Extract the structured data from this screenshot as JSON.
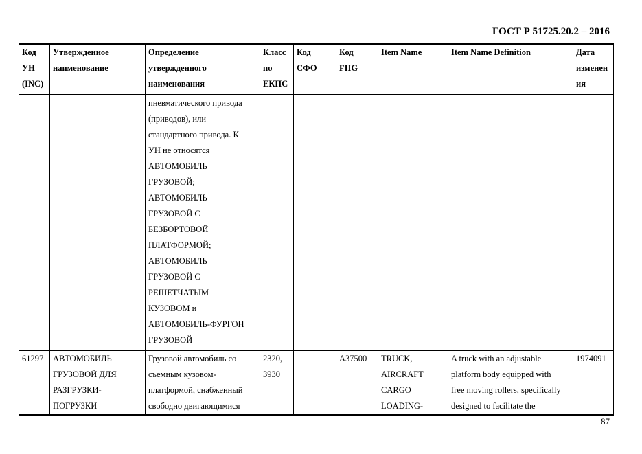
{
  "header": {
    "doc_number": "ГОСТ Р 51725.20.2 – 2016"
  },
  "table": {
    "columns": [
      "Код\nУН\n(INC)",
      "Утвержденное\nнаименование",
      "Определение\nутвержденного\nнаименования",
      "Класс\nпо\nЕКПС",
      "Код\nСФО",
      "Код\nFIIG",
      "Item Name",
      "Item Name Definition",
      "Дата\nизменен\nия"
    ],
    "rows": [
      [
        "",
        "",
        "пневматического привода\n(приводов), или\nстандартного привода. К\nУН не относятся\nАВТОМОБИЛЬ\nГРУЗОВОЙ;\nАВТОМОБИЛЬ\nГРУЗОВОЙ С\nБЕЗБОРТОВОЙ\nПЛАТФОРМОЙ;\nАВТОМОБИЛЬ\nГРУЗОВОЙ С\nРЕШЕТЧАТЫМ\nКУЗОВОМ и\nАВТОМОБИЛЬ-ФУРГОН\nГРУЗОВОЙ",
        "",
        "",
        "",
        "",
        "",
        ""
      ],
      [
        "61297",
        "АВТОМОБИЛЬ\nГРУЗОВОЙ ДЛЯ\nРАЗГРУЗКИ-\nПОГРУЗКИ",
        "Грузовой автомобиль со\nсъемным кузовом-\nплатформой, снабженный\nсвободно двигающимися",
        "2320,\n3930",
        "",
        "A37500",
        "TRUCK,\nAIRCRAFT\nCARGO\nLOADING-",
        "A truck with an adjustable\nplatform body equipped with\nfree moving rollers, specifically\ndesigned to facilitate the",
        "1974091"
      ]
    ]
  },
  "footer": {
    "page_number": "87"
  }
}
